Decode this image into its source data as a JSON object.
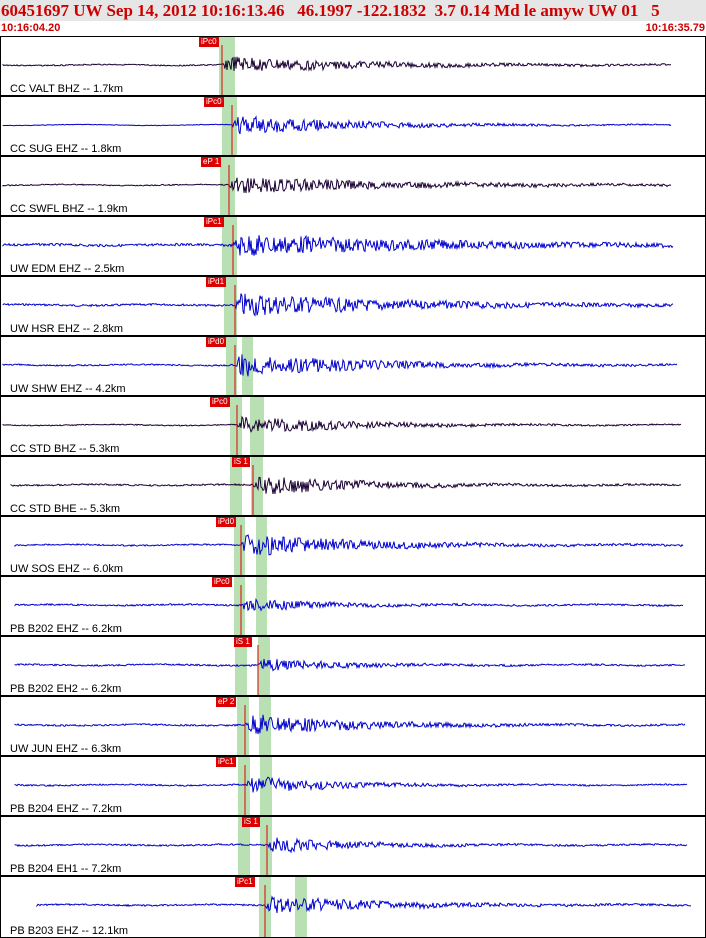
{
  "header": {
    "title": "60451697 UW Sep 14, 2012 10:16:13.46   46.1997 -122.1832  3.7 0.14 Md le amyw UW 01   5",
    "start_time": "10:16:04.20",
    "end_time": "10:16:35.79"
  },
  "colors": {
    "blue_trace": "#0000cc",
    "dark_trace": "#1a0033",
    "pick": "#dd0000",
    "shading": "#b9e0b3",
    "title_bg": "#e6e6e6"
  },
  "traces": [
    {
      "label": "CC VALT BHZ -- 1.7km",
      "pick": "iPc0",
      "color": "dark"
    },
    {
      "label": "CC SUG EHZ -- 1.8km",
      "pick": "iPc0",
      "color": "blue"
    },
    {
      "label": "CC SWFL BHZ -- 1.9km",
      "pick": "eP 1",
      "color": "dark"
    },
    {
      "label": "UW EDM EHZ -- 2.5km",
      "pick": "iPc1",
      "color": "blue"
    },
    {
      "label": "UW HSR EHZ -- 2.8km",
      "pick": "iPd1",
      "color": "blue"
    },
    {
      "label": "UW SHW EHZ -- 4.2km",
      "pick": "iPd0",
      "color": "blue"
    },
    {
      "label": "CC STD BHZ -- 5.3km",
      "pick": "iPc0",
      "color": "dark"
    },
    {
      "label": "CC STD BHE -- 5.3km",
      "pick": "iS 1",
      "color": "dark"
    },
    {
      "label": "UW SOS EHZ -- 6.0km",
      "pick": "iPd0",
      "color": "blue"
    },
    {
      "label": "PB B202 EHZ -- 6.2km",
      "pick": "iPc0",
      "color": "blue"
    },
    {
      "label": "PB B202 EH2 -- 6.2km",
      "pick": "iS 1",
      "color": "blue"
    },
    {
      "label": "UW JUN EHZ -- 6.3km",
      "pick": "eP 2",
      "color": "blue"
    },
    {
      "label": "PB B204 EHZ -- 7.2km",
      "pick": "iPc1",
      "color": "blue"
    },
    {
      "label": "PB B204 EH1 -- 7.2km",
      "pick": "iS 1",
      "color": "blue"
    },
    {
      "label": "PB B203 EHZ -- 12.1km",
      "pick": "iPc1",
      "color": "blue"
    }
  ]
}
